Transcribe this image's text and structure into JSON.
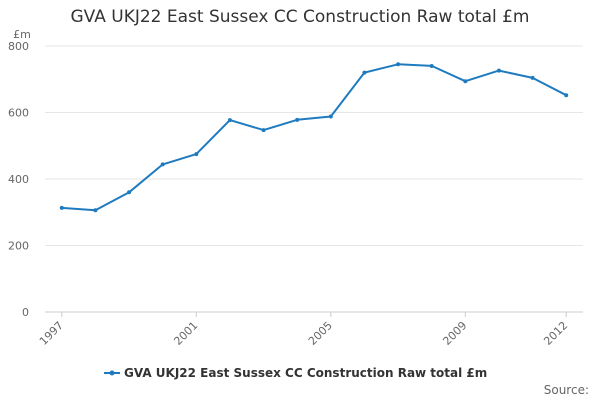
{
  "chart_data": {
    "type": "line",
    "title": "GVA UKJ22 East Sussex CC Construction Raw total £m",
    "ylabel": "£m",
    "xlabel": "",
    "ylim": [
      0,
      800
    ],
    "y_ticks": [
      "0",
      "200",
      "400",
      "600",
      "800"
    ],
    "x_ticks": [
      "1997",
      "2001",
      "2005",
      "2009",
      "2012"
    ],
    "grid": "horizontal",
    "legend_position": "bottom",
    "series": [
      {
        "name": "GVA UKJ22 East Sussex CC Construction Raw total £m",
        "color": "#1f7bbf",
        "x": [
          1997,
          1998,
          1999,
          2000,
          2001,
          2002,
          2003,
          2004,
          2005,
          2006,
          2007,
          2008,
          2009,
          2010,
          2011,
          2012
        ],
        "values": [
          313,
          306,
          360,
          444,
          475,
          577,
          547,
          578,
          588,
          720,
          745,
          740,
          694,
          726,
          704,
          652
        ]
      }
    ]
  },
  "credit": "Source:"
}
